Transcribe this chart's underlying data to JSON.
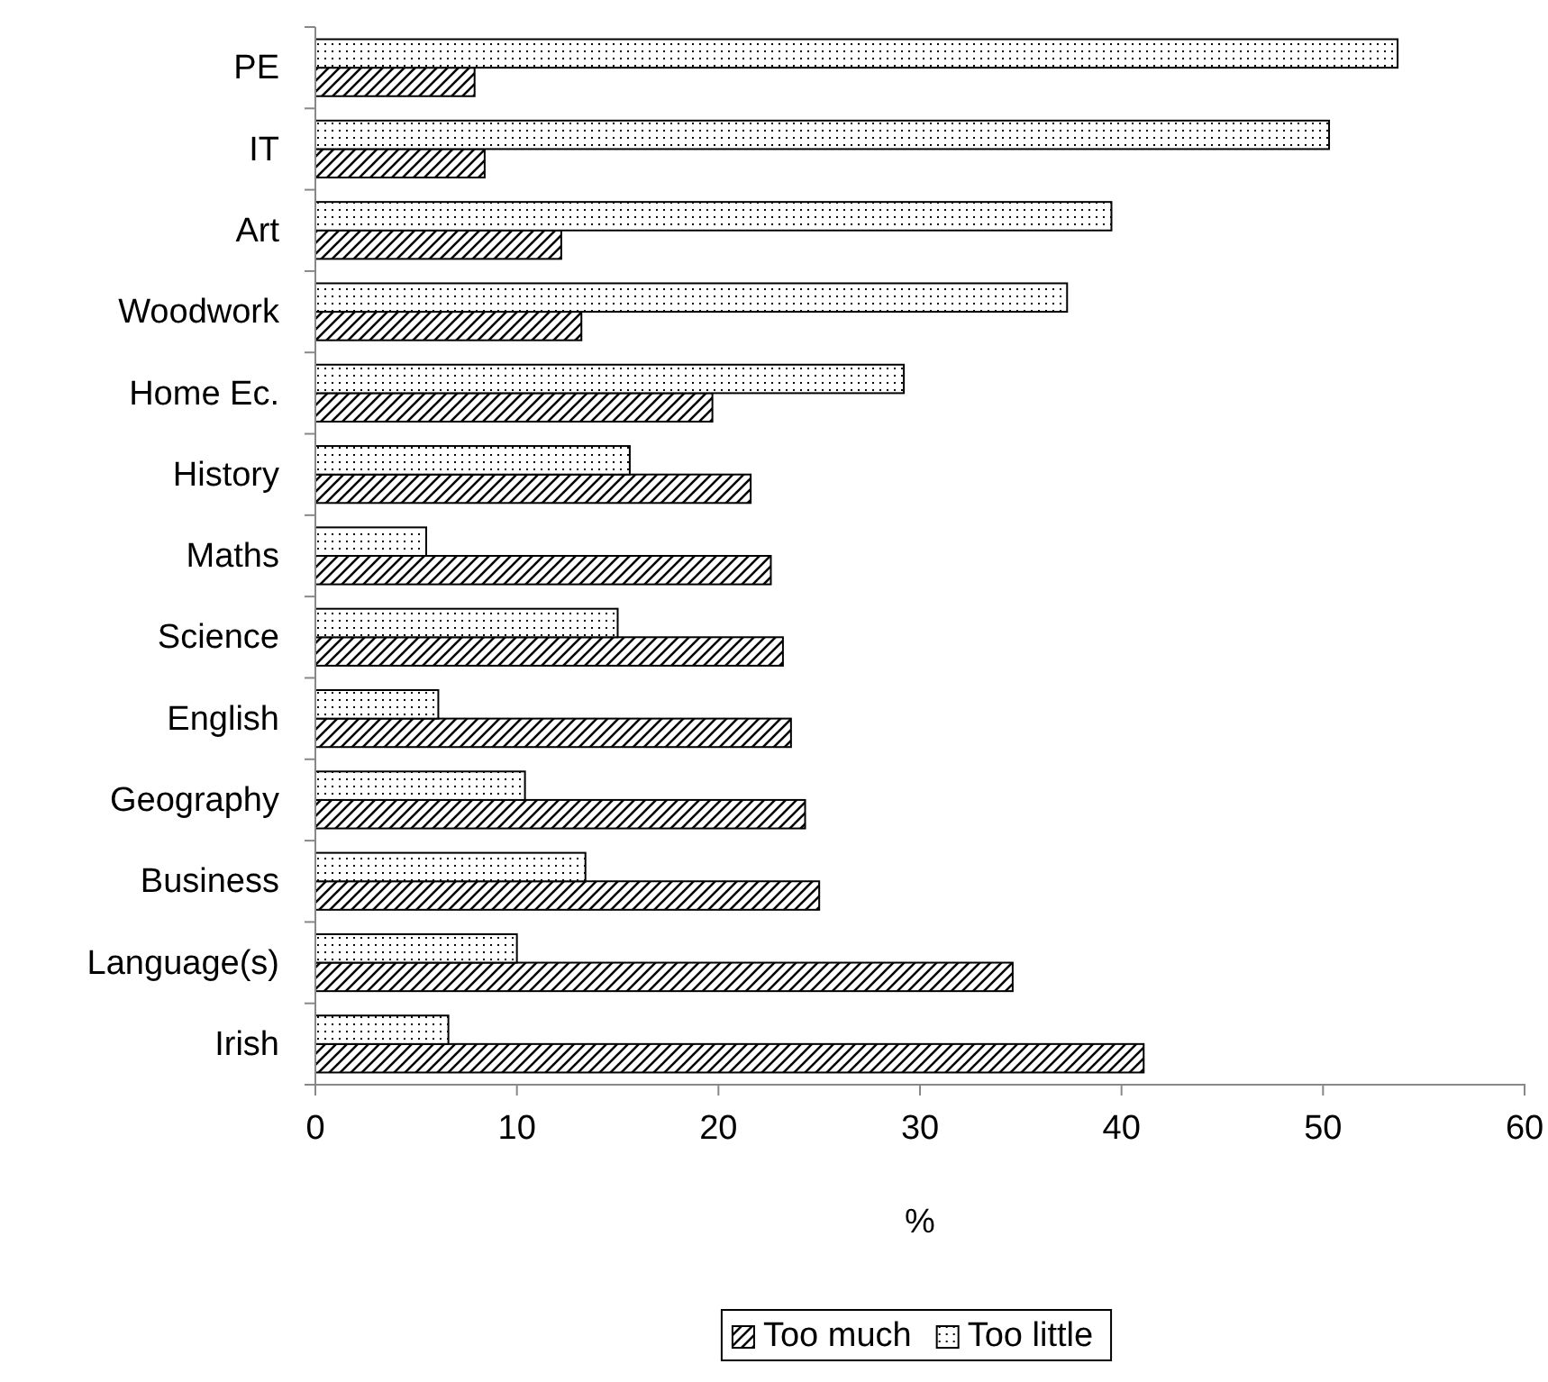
{
  "chart_data": {
    "type": "bar",
    "orientation": "horizontal",
    "xlabel": "%",
    "categories": [
      "PE",
      "IT",
      "Art",
      "Woodwork",
      "Home Ec.",
      "History",
      "Maths",
      "Science",
      "English",
      "Geography",
      "Business",
      "Language(s)",
      "Irish"
    ],
    "series": [
      {
        "name": "Too much",
        "color": "#000000",
        "values": [
          7.9,
          8.4,
          12.2,
          13.2,
          19.7,
          21.6,
          22.6,
          23.2,
          23.6,
          24.3,
          25.0,
          34.6,
          41.1
        ]
      },
      {
        "name": "Too little",
        "color": "#000000",
        "values": [
          53.7,
          50.3,
          39.5,
          37.3,
          29.2,
          15.6,
          5.5,
          15.0,
          6.1,
          10.4,
          13.4,
          10.0,
          6.6
        ]
      }
    ],
    "xlim": [
      0,
      60
    ],
    "xticks": [
      0,
      10,
      20,
      30,
      40,
      50,
      60
    ],
    "grid": false,
    "legend": "bottom"
  }
}
